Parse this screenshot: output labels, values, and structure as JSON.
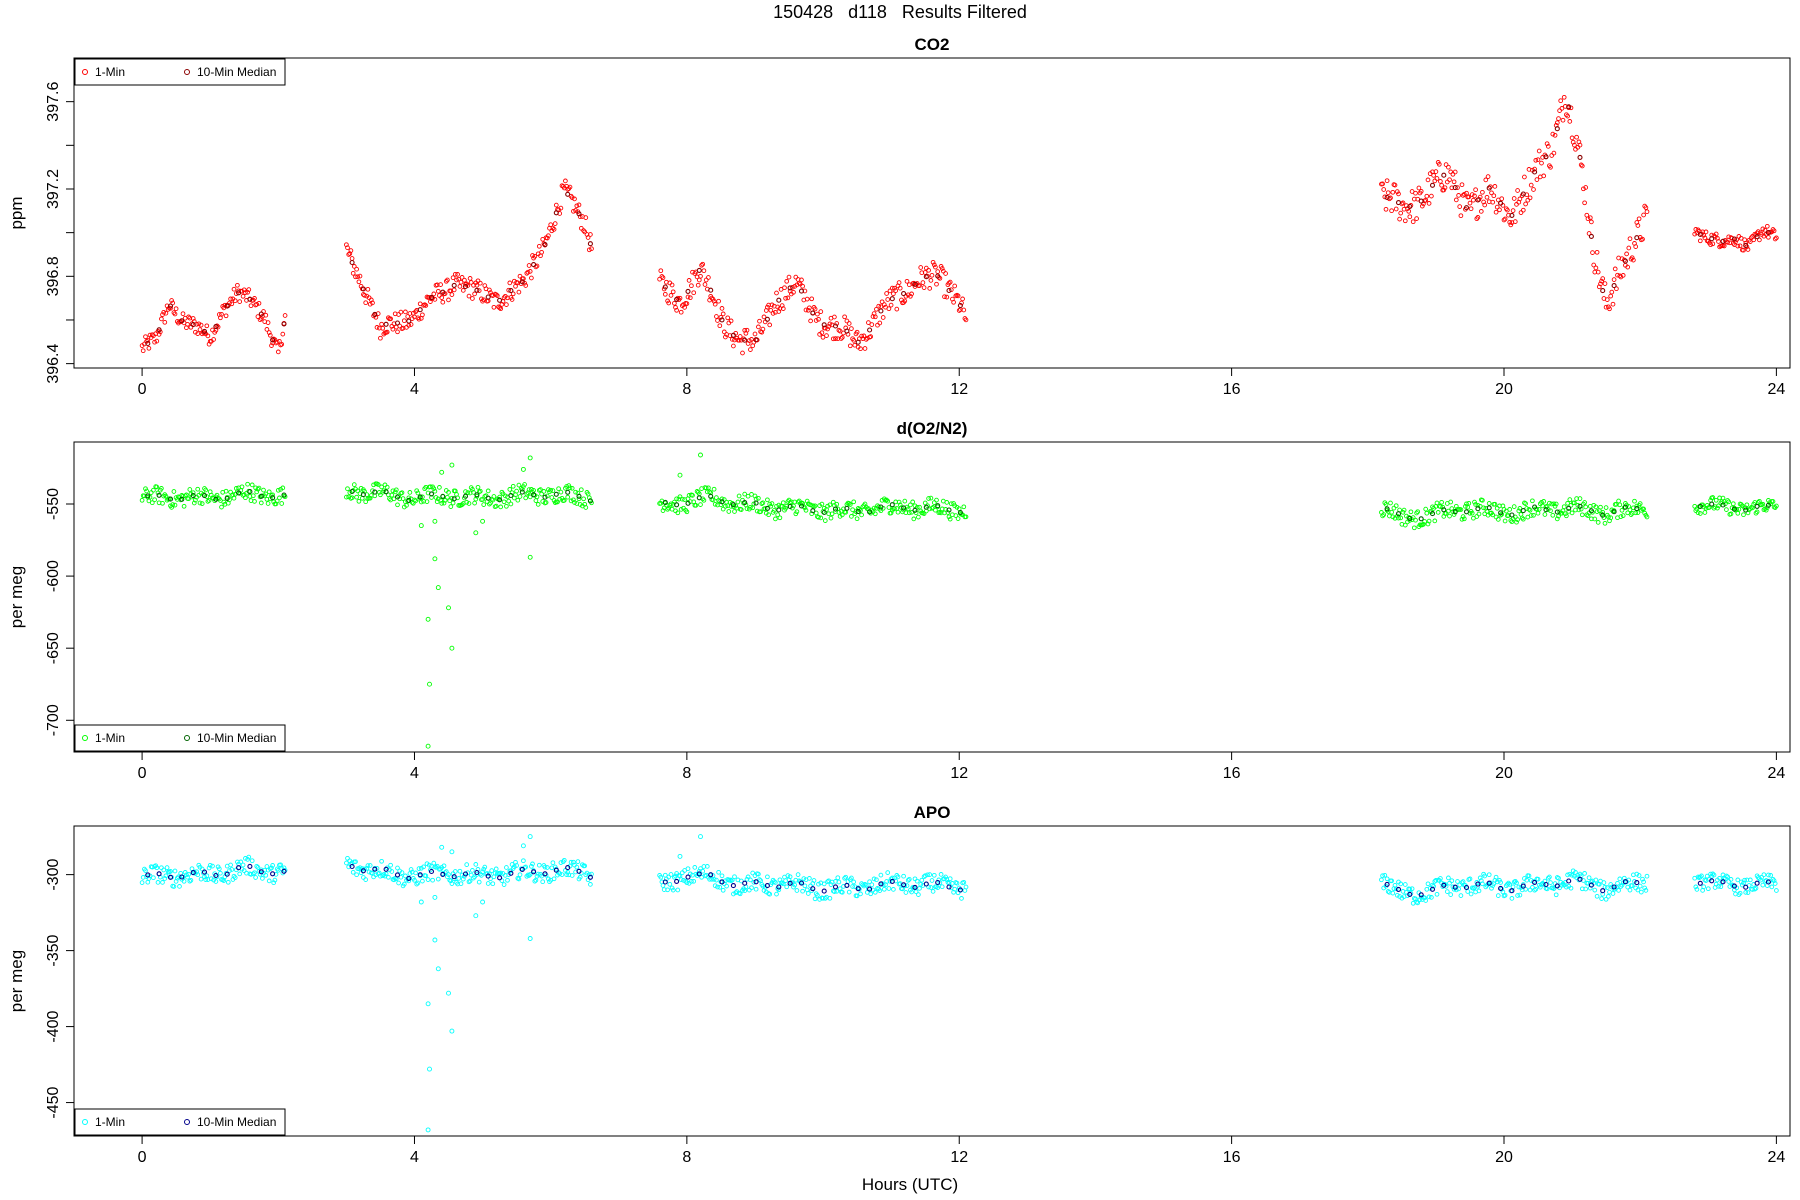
{
  "page": {
    "title": "150428   d118   Results Filtered",
    "xlabel": "Hours (UTC)"
  },
  "colors": {
    "co2_1min": "#ff0000",
    "co2_median": "#8b0000",
    "o2_1min": "#00ff00",
    "o2_median": "#006400",
    "apo_1min": "#00ffff",
    "apo_median": "#00008b"
  },
  "chart_data": [
    {
      "type": "scatter",
      "title": "CO2",
      "ylabel": "ppm",
      "xlim": [
        -1,
        24.2
      ],
      "ylim": [
        396.38,
        397.8
      ],
      "xticks": [
        0,
        4,
        8,
        12,
        16,
        20,
        24
      ],
      "yticks": [
        396.4,
        396.8,
        397.2,
        397.6
      ],
      "yminor": [
        396.6,
        397.0,
        397.4
      ],
      "legend": {
        "placement": "top-left",
        "entries": [
          "1-Min",
          "10-Min Median"
        ]
      },
      "segments": [
        {
          "x": [
            0.0,
            0.2,
            0.4,
            0.6,
            0.8,
            1.0,
            1.2,
            1.4,
            1.6,
            1.8,
            2.0,
            2.1
          ],
          "y": [
            396.47,
            396.5,
            396.68,
            396.6,
            396.56,
            396.52,
            396.66,
            396.72,
            396.68,
            396.62,
            396.45,
            396.6
          ],
          "amp": 0.04
        },
        {
          "x": [
            3.0,
            3.2,
            3.5,
            3.8,
            4.0,
            4.3,
            4.6,
            4.9,
            5.2,
            5.6,
            5.9,
            6.2,
            6.5,
            6.6
          ],
          "y": [
            396.92,
            396.8,
            396.55,
            396.6,
            396.62,
            396.7,
            396.78,
            396.72,
            396.7,
            396.76,
            396.95,
            397.18,
            397.05,
            396.95
          ],
          "amp": 0.05
        },
        {
          "x": [
            7.6,
            7.9,
            8.2,
            8.5,
            8.8,
            9.0,
            9.3,
            9.6,
            9.9,
            10.2,
            10.5,
            10.8,
            11.1,
            11.4,
            11.7,
            12.0,
            12.1
          ],
          "y": [
            396.75,
            396.7,
            396.82,
            396.62,
            396.5,
            396.48,
            396.7,
            396.75,
            396.62,
            396.56,
            396.5,
            396.62,
            396.7,
            396.8,
            396.78,
            396.7,
            396.62
          ],
          "amp": 0.06
        },
        {
          "x": [
            18.2,
            18.5,
            18.9,
            19.2,
            19.5,
            19.8,
            20.1,
            20.4,
            20.7,
            20.9,
            21.1,
            21.3,
            21.5,
            21.8,
            22.1
          ],
          "y": [
            397.17,
            397.1,
            397.2,
            397.25,
            397.12,
            397.18,
            397.1,
            397.22,
            397.4,
            397.65,
            397.35,
            396.95,
            396.7,
            396.85,
            397.1
          ],
          "amp": 0.08
        },
        {
          "x": [
            22.8,
            23.0,
            23.2,
            23.4,
            23.6,
            23.8,
            24.0
          ],
          "y": [
            397.02,
            396.97,
            396.95,
            396.98,
            396.94,
            397.0,
            396.98
          ],
          "amp": 0.03
        }
      ]
    },
    {
      "type": "scatter",
      "title": "d(O2/N2)",
      "ylabel": "per meg",
      "xlim": [
        -1,
        24.2
      ],
      "ylim": [
        -722,
        -507
      ],
      "xticks": [
        0,
        4,
        8,
        12,
        16,
        20,
        24
      ],
      "yticks": [
        -550,
        -600,
        -650,
        -700
      ],
      "legend": {
        "placement": "bottom-left",
        "entries": [
          "1-Min",
          "10-Min Median"
        ]
      },
      "segments": [
        {
          "x": [
            0.0,
            0.5,
            1.0,
            1.5,
            2.0,
            2.1
          ],
          "y": [
            -546,
            -545,
            -546,
            -543,
            -544,
            -545
          ],
          "amp": 6
        },
        {
          "x": [
            3.0,
            3.5,
            4.0,
            4.5,
            5.0,
            5.5,
            6.0,
            6.5,
            6.6
          ],
          "y": [
            -540,
            -543,
            -546,
            -544,
            -546,
            -544,
            -543,
            -545,
            -546
          ],
          "amp": 6
        },
        {
          "x": [
            7.6,
            8.0,
            8.4,
            8.8,
            9.2,
            9.6,
            10.0,
            10.4,
            10.8,
            11.2,
            11.6,
            12.0,
            12.1
          ],
          "y": [
            -551,
            -548,
            -546,
            -550,
            -552,
            -553,
            -554,
            -555,
            -553,
            -552,
            -553,
            -554,
            -553
          ],
          "amp": 6
        },
        {
          "x": [
            18.2,
            18.5,
            19.0,
            19.5,
            20.0,
            20.5,
            21.0,
            21.5,
            22.0,
            22.1
          ],
          "y": [
            -552,
            -560,
            -557,
            -553,
            -556,
            -554,
            -553,
            -556,
            -553,
            -552
          ],
          "amp": 6
        },
        {
          "x": [
            22.8,
            23.2,
            23.6,
            24.0
          ],
          "y": [
            -550,
            -552,
            -553,
            -552
          ],
          "amp": 5
        }
      ],
      "outliers": [
        {
          "x": 4.2,
          "y": -630
        },
        {
          "x": 4.22,
          "y": -675
        },
        {
          "x": 4.2,
          "y": -718
        },
        {
          "x": 4.3,
          "y": -588
        },
        {
          "x": 4.35,
          "y": -608
        },
        {
          "x": 4.5,
          "y": -622
        },
        {
          "x": 4.55,
          "y": -650
        },
        {
          "x": 4.1,
          "y": -565
        },
        {
          "x": 4.3,
          "y": -562
        },
        {
          "x": 4.4,
          "y": -528
        },
        {
          "x": 4.55,
          "y": -523
        },
        {
          "x": 4.9,
          "y": -570
        },
        {
          "x": 5.0,
          "y": -562
        },
        {
          "x": 5.6,
          "y": -526
        },
        {
          "x": 5.7,
          "y": -518
        },
        {
          "x": 5.7,
          "y": -587
        },
        {
          "x": 8.2,
          "y": -516
        },
        {
          "x": 7.9,
          "y": -530
        }
      ]
    },
    {
      "type": "scatter",
      "title": "APO",
      "ylabel": "per meg",
      "xlim": [
        -1,
        24.2
      ],
      "ylim": [
        -472,
        -268
      ],
      "xticks": [
        0,
        4,
        8,
        12,
        16,
        20,
        24
      ],
      "yticks": [
        -300,
        -350,
        -400,
        -450
      ],
      "legend": {
        "placement": "bottom-left",
        "entries": [
          "1-Min",
          "10-Min Median"
        ]
      },
      "segments": [
        {
          "x": [
            0.0,
            0.5,
            1.0,
            1.5,
            2.0,
            2.1
          ],
          "y": [
            -302,
            -300,
            -300,
            -296,
            -298,
            -299
          ],
          "amp": 6
        },
        {
          "x": [
            3.0,
            3.5,
            4.0,
            4.5,
            5.0,
            5.5,
            6.0,
            6.5,
            6.6
          ],
          "y": [
            -293,
            -298,
            -301,
            -299,
            -301,
            -299,
            -297,
            -298,
            -300
          ],
          "amp": 6
        },
        {
          "x": [
            7.6,
            8.0,
            8.4,
            8.8,
            9.2,
            9.6,
            10.0,
            10.4,
            10.8,
            11.2,
            11.6,
            12.0,
            12.1
          ],
          "y": [
            -308,
            -300,
            -302,
            -307,
            -306,
            -307,
            -309,
            -309,
            -307,
            -306,
            -307,
            -308,
            -308
          ],
          "amp": 6
        },
        {
          "x": [
            18.2,
            18.5,
            19.0,
            19.5,
            20.0,
            20.5,
            21.0,
            21.5,
            22.0,
            22.1
          ],
          "y": [
            -305,
            -313,
            -310,
            -306,
            -309,
            -307,
            -304,
            -309,
            -305,
            -304
          ],
          "amp": 6
        },
        {
          "x": [
            22.8,
            23.2,
            23.6,
            24.0
          ],
          "y": [
            -304,
            -306,
            -307,
            -306
          ],
          "amp": 5
        }
      ],
      "outliers": [
        {
          "x": 4.2,
          "y": -385
        },
        {
          "x": 4.22,
          "y": -428
        },
        {
          "x": 4.2,
          "y": -468
        },
        {
          "x": 4.3,
          "y": -343
        },
        {
          "x": 4.35,
          "y": -362
        },
        {
          "x": 4.5,
          "y": -378
        },
        {
          "x": 4.55,
          "y": -403
        },
        {
          "x": 4.1,
          "y": -318
        },
        {
          "x": 4.3,
          "y": -315
        },
        {
          "x": 4.4,
          "y": -282
        },
        {
          "x": 4.55,
          "y": -285
        },
        {
          "x": 4.9,
          "y": -327
        },
        {
          "x": 5.0,
          "y": -318
        },
        {
          "x": 5.6,
          "y": -281
        },
        {
          "x": 5.7,
          "y": -275
        },
        {
          "x": 5.7,
          "y": -342
        },
        {
          "x": 8.2,
          "y": -275
        },
        {
          "x": 7.9,
          "y": -288
        }
      ]
    }
  ]
}
